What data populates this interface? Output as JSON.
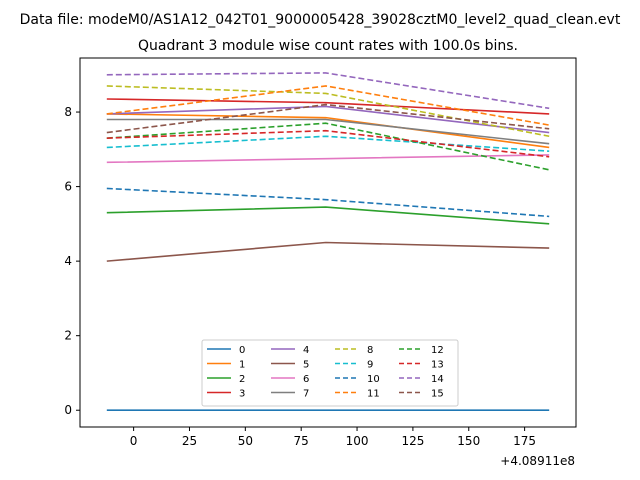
{
  "figure": {
    "suptitle": "Data file: modeM0/AS1A12_042T01_9000005428_39028cztM0_level2_quad_clean.evt",
    "offset_label": "+4.08911e8"
  },
  "chart_data": {
    "type": "line",
    "title": "Quadrant 3 module wise count rates with 100.0s bins.",
    "xlabel": "",
    "ylabel": "",
    "x": [
      -12,
      86,
      186
    ],
    "xlim": [
      -24,
      198
    ],
    "ylim": [
      -0.45,
      9.45
    ],
    "xticks": [
      0,
      25,
      50,
      75,
      100,
      125,
      150,
      175
    ],
    "yticks": [
      0,
      2,
      4,
      6,
      8
    ],
    "grid": false,
    "legend": {
      "placement": "lower center",
      "columns": 4
    },
    "series": [
      {
        "name": "0",
        "color": "#1f77b4",
        "style": "solid",
        "values": [
          0.0,
          0.0,
          0.0
        ]
      },
      {
        "name": "1",
        "color": "#ff7f0e",
        "style": "solid",
        "values": [
          7.95,
          7.85,
          7.05
        ]
      },
      {
        "name": "2",
        "color": "#2ca02c",
        "style": "solid",
        "values": [
          5.3,
          5.45,
          5.0
        ]
      },
      {
        "name": "3",
        "color": "#d62728",
        "style": "solid",
        "values": [
          8.35,
          8.25,
          7.95
        ]
      },
      {
        "name": "4",
        "color": "#9467bd",
        "style": "solid",
        "values": [
          7.95,
          8.15,
          7.45
        ]
      },
      {
        "name": "5",
        "color": "#8c564b",
        "style": "solid",
        "values": [
          4.0,
          4.5,
          4.35
        ]
      },
      {
        "name": "6",
        "color": "#e377c2",
        "style": "solid",
        "values": [
          6.65,
          6.75,
          6.85
        ]
      },
      {
        "name": "7",
        "color": "#7f7f7f",
        "style": "solid",
        "values": [
          7.8,
          7.8,
          7.15
        ]
      },
      {
        "name": "8",
        "color": "#bcbd22",
        "style": "dashed",
        "values": [
          8.7,
          8.5,
          7.35
        ]
      },
      {
        "name": "9",
        "color": "#17becf",
        "style": "dashed",
        "values": [
          7.05,
          7.35,
          6.95
        ]
      },
      {
        "name": "10",
        "color": "#1f77b4",
        "style": "dashed",
        "values": [
          5.95,
          5.65,
          5.2
        ]
      },
      {
        "name": "11",
        "color": "#ff7f0e",
        "style": "dashed",
        "values": [
          7.95,
          8.7,
          7.65
        ]
      },
      {
        "name": "12",
        "color": "#2ca02c",
        "style": "dashed",
        "values": [
          7.3,
          7.7,
          6.45
        ]
      },
      {
        "name": "13",
        "color": "#d62728",
        "style": "dashed",
        "values": [
          7.3,
          7.5,
          6.8
        ]
      },
      {
        "name": "14",
        "color": "#9467bd",
        "style": "dashed",
        "values": [
          9.0,
          9.05,
          8.1
        ]
      },
      {
        "name": "15",
        "color": "#8c564b",
        "style": "dashed",
        "values": [
          7.45,
          8.2,
          7.55
        ]
      }
    ]
  }
}
